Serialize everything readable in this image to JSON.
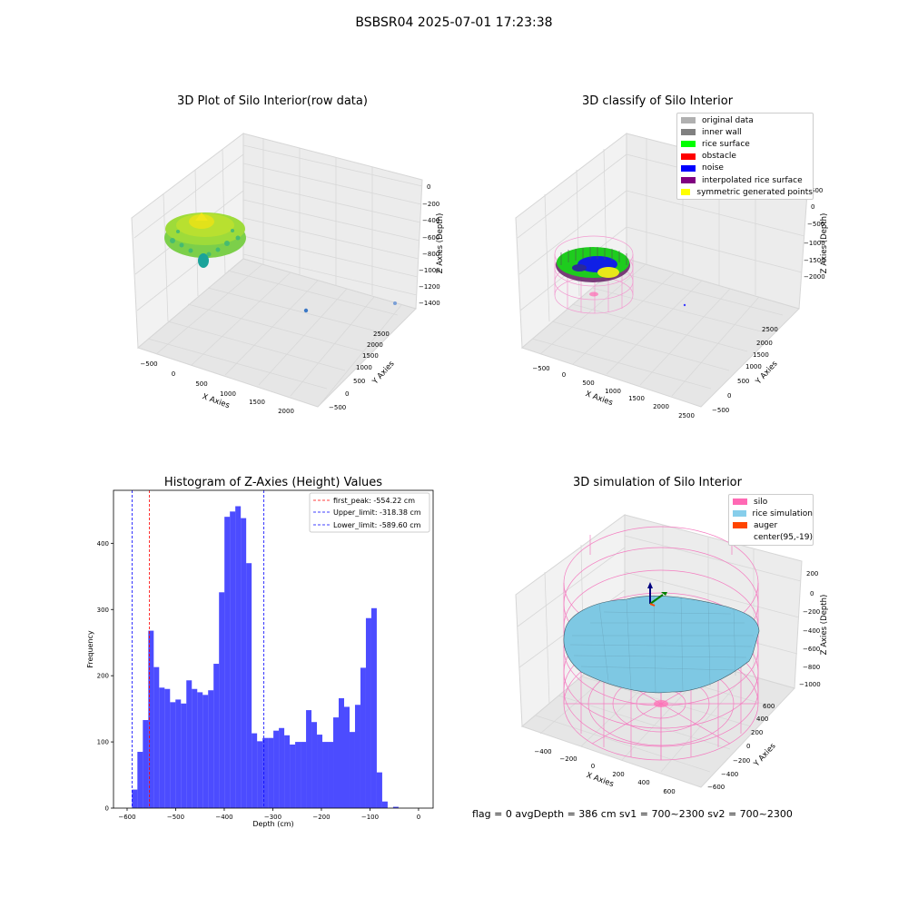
{
  "suptitle": "BSBSR04 2025-07-01 17:23:38",
  "footer": "flag = 0     avgDepth = 386 cm  sv1 = 700~2300  sv2 = 700~2300",
  "panel1": {
    "title": "3D Plot of Silo Interior(row data)",
    "xlabel": "X Axies",
    "ylabel": "Y Axies",
    "zlabel": "Z Axies (Depth)",
    "xticks": [
      "−500",
      "0",
      "500",
      "1000",
      "1500",
      "2000"
    ],
    "yticks": [
      "−500",
      "0",
      "500",
      "1000",
      "1500",
      "2000",
      "2500"
    ],
    "zticks": [
      "0",
      "−200",
      "−400",
      "−600",
      "−800",
      "−1000",
      "−1200",
      "−1400"
    ]
  },
  "panel2": {
    "title": "3D classify of Silo Interior",
    "xlabel": "X Axies",
    "ylabel": "Y Axies",
    "zlabel": "Z Axies (Depth)",
    "xticks": [
      "−500",
      "0",
      "500",
      "1000",
      "1500",
      "2000",
      "2500"
    ],
    "yticks": [
      "−500",
      "0",
      "500",
      "1000",
      "1500",
      "2000",
      "2500"
    ],
    "zticks": [
      "500",
      "0",
      "−500",
      "−1000",
      "−1500",
      "−2000"
    ],
    "legend": [
      {
        "label": "original data",
        "color": "#b0b0b0"
      },
      {
        "label": "inner wall",
        "color": "#808080"
      },
      {
        "label": "rice surface",
        "color": "#00ff00"
      },
      {
        "label": "obstacle",
        "color": "#ff0000"
      },
      {
        "label": "noise",
        "color": "#0000ff"
      },
      {
        "label": "interpolated rice surface",
        "color": "#800080"
      },
      {
        "label": "symmetric generated points",
        "color": "#ffff00"
      }
    ]
  },
  "panel4": {
    "title": "3D simulation of Silo Interior",
    "xlabel": "X Axies",
    "ylabel": "Y Axies",
    "zlabel": "Z Axies (Depth)",
    "xticks": [
      "−400",
      "−200",
      "0",
      "200",
      "400",
      "600"
    ],
    "yticks": [
      "−600",
      "−400",
      "−200",
      "0",
      "200",
      "400",
      "600"
    ],
    "zticks": [
      "200",
      "0",
      "−200",
      "−400",
      "−600",
      "−800",
      "−1000"
    ],
    "legend": [
      {
        "label": "silo",
        "color": "#ff69b4"
      },
      {
        "label": "rice simulation",
        "color": "#87ceeb"
      },
      {
        "label": "auger",
        "color": "#ff4500"
      },
      {
        "label": "center(95,-19)",
        "color": ""
      }
    ]
  },
  "chart_data": {
    "type": "bar",
    "title": "Histogram of Z-Axies (Height) Values",
    "xlabel": "Depth (cm)",
    "ylabel": "Frequency",
    "xlim": [
      -628,
      30
    ],
    "ylim": [
      0,
      480
    ],
    "xticks": [
      -600,
      -500,
      -400,
      -300,
      -200,
      -100,
      0
    ],
    "yticks": [
      0,
      100,
      200,
      300,
      400
    ],
    "bin_start": -590,
    "bin_width": 11.2,
    "color": "#0000ff",
    "values": [
      28,
      85,
      133,
      268,
      213,
      182,
      180,
      160,
      164,
      158,
      193,
      180,
      175,
      171,
      178,
      218,
      326,
      440,
      448,
      456,
      438,
      370,
      113,
      101,
      106,
      106,
      117,
      121,
      110,
      96,
      100,
      100,
      148,
      130,
      111,
      100,
      100,
      137,
      166,
      153,
      115,
      156,
      212,
      287,
      302,
      54,
      10,
      0,
      2
    ],
    "vlines": [
      {
        "label": "first_peak: -554.22 cm",
        "x": -554.22,
        "color": "#ff0000"
      },
      {
        "label": "Upper_limit: -318.38 cm",
        "x": -318.38,
        "color": "#0000ff"
      },
      {
        "label": "Lower_limit: -589.60 cm",
        "x": -589.6,
        "color": "#0000ff"
      }
    ]
  }
}
